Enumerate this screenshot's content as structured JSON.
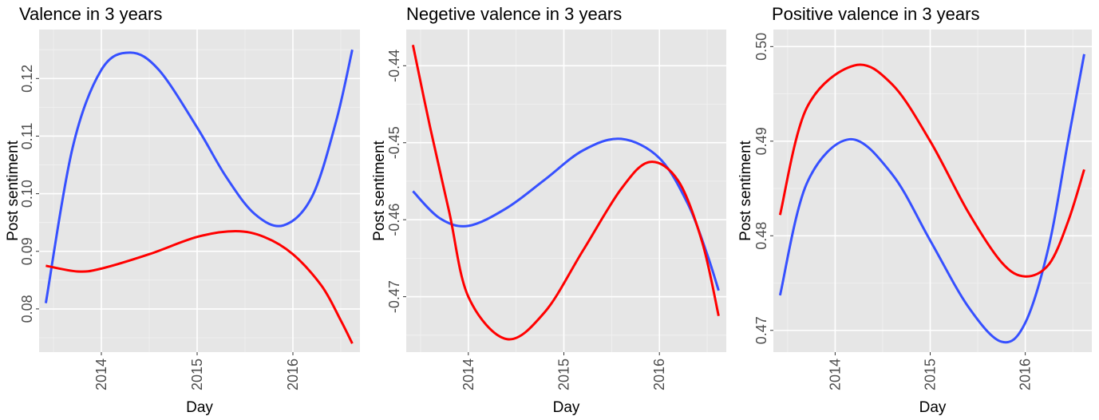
{
  "chart_data": [
    {
      "type": "line",
      "title": "Valence in 3 years",
      "xlabel": "Day",
      "ylabel": "Post sentiment",
      "xlim": [
        2013.35,
        2016.7
      ],
      "ylim": [
        0.0725,
        0.1285
      ],
      "x_ticks": [
        "2014",
        "2015",
        "2016"
      ],
      "y_ticks": [
        "0.08",
        "0.09",
        "0.10",
        "0.11",
        "0.12"
      ],
      "y_tick_values": [
        0.08,
        0.09,
        0.1,
        0.11,
        0.12
      ],
      "grid": true,
      "series": [
        {
          "color": "#3650FF",
          "x": [
            2013.42,
            2013.7,
            2014.0,
            2014.3,
            2014.6,
            2015.0,
            2015.3,
            2015.6,
            2015.9,
            2016.2,
            2016.45,
            2016.62
          ],
          "values": [
            0.081,
            0.108,
            0.1215,
            0.1245,
            0.1215,
            0.1115,
            0.103,
            0.0965,
            0.0945,
            0.0995,
            0.1125,
            0.125
          ]
        },
        {
          "color": "#FF0000",
          "x": [
            2013.42,
            2013.75,
            2014.0,
            2014.5,
            2015.0,
            2015.4,
            2015.7,
            2016.0,
            2016.3,
            2016.5,
            2016.62
          ],
          "values": [
            0.0875,
            0.0865,
            0.087,
            0.0895,
            0.0925,
            0.0935,
            0.0925,
            0.0895,
            0.084,
            0.078,
            0.074
          ]
        }
      ]
    },
    {
      "type": "line",
      "title": "Negetive valence in 3 years",
      "xlabel": "Day",
      "ylabel": "Post sentiment",
      "xlim": [
        2013.35,
        2016.7
      ],
      "ylim": [
        -0.4772,
        -0.4353
      ],
      "x_ticks": [
        "2014",
        "2015",
        "2016"
      ],
      "y_ticks": [
        "-0.47",
        "-0.46",
        "-0.45",
        "-0.44"
      ],
      "y_tick_values": [
        -0.47,
        -0.46,
        -0.45,
        -0.44
      ],
      "grid": true,
      "series": [
        {
          "color": "#3650FF",
          "x": [
            2013.42,
            2013.7,
            2014.0,
            2014.4,
            2014.8,
            2015.2,
            2015.6,
            2016.0,
            2016.3,
            2016.5,
            2016.62
          ],
          "values": [
            -0.4563,
            -0.4598,
            -0.4608,
            -0.4585,
            -0.4548,
            -0.451,
            -0.4495,
            -0.452,
            -0.458,
            -0.4645,
            -0.4692
          ]
        },
        {
          "color": "#FF0000",
          "x": [
            2013.42,
            2013.6,
            2013.8,
            2014.0,
            2014.4,
            2014.8,
            2015.2,
            2015.6,
            2015.9,
            2016.2,
            2016.45,
            2016.62
          ],
          "values": [
            -0.4373,
            -0.448,
            -0.459,
            -0.47,
            -0.4755,
            -0.472,
            -0.464,
            -0.456,
            -0.4525,
            -0.455,
            -0.463,
            -0.4725
          ]
        }
      ]
    },
    {
      "type": "line",
      "title": "Positive valence in 3 years",
      "xlabel": "Day",
      "ylabel": "Post sentiment",
      "xlim": [
        2013.35,
        2016.7
      ],
      "ylim": [
        0.4677,
        0.5018
      ],
      "x_ticks": [
        "2014",
        "2015",
        "2016"
      ],
      "y_ticks": [
        "0.47",
        "0.48",
        "0.49",
        "0.50"
      ],
      "y_tick_values": [
        0.47,
        0.48,
        0.49,
        0.5
      ],
      "grid": true,
      "series": [
        {
          "color": "#3650FF",
          "x": [
            2013.42,
            2013.7,
            2014.15,
            2014.6,
            2015.0,
            2015.4,
            2015.75,
            2016.0,
            2016.25,
            2016.45,
            2016.62
          ],
          "values": [
            0.4737,
            0.4855,
            0.4902,
            0.4865,
            0.4795,
            0.4725,
            0.4688,
            0.4708,
            0.479,
            0.49,
            0.4992
          ]
        },
        {
          "color": "#FF0000",
          "x": [
            2013.42,
            2013.7,
            2014.2,
            2014.6,
            2015.0,
            2015.4,
            2015.75,
            2016.0,
            2016.25,
            2016.45,
            2016.62
          ],
          "values": [
            0.4822,
            0.4935,
            0.498,
            0.496,
            0.49,
            0.4825,
            0.4772,
            0.4757,
            0.477,
            0.4815,
            0.487
          ]
        }
      ]
    }
  ]
}
